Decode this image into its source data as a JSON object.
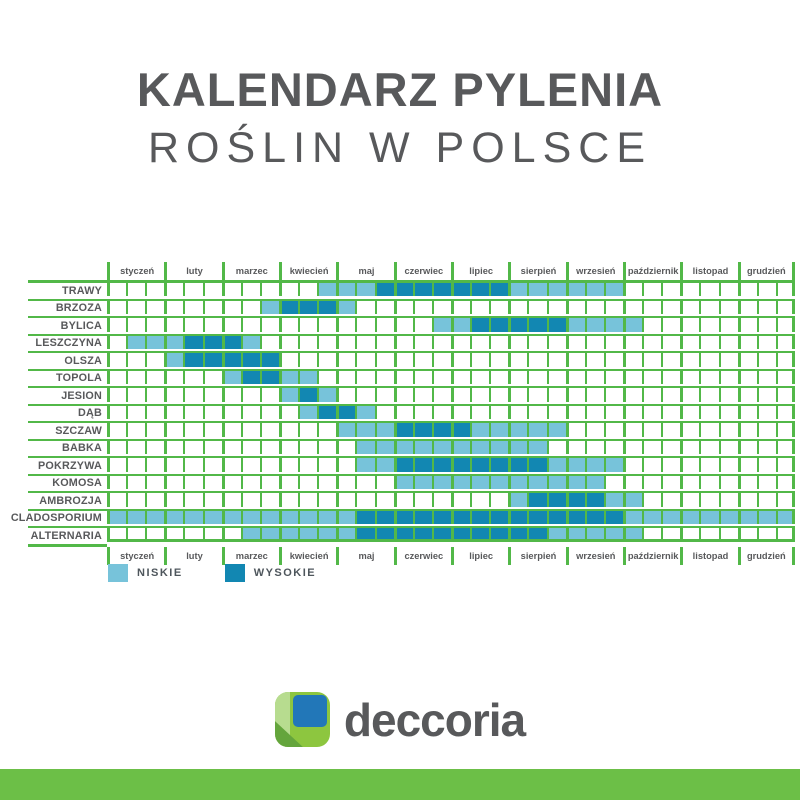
{
  "title": "KALENDARZ PYLENIA",
  "subtitle": "ROŚLIN W POLSCE",
  "legend": {
    "low_label": "NISKIE",
    "high_label": "WYSOKIE"
  },
  "logo": {
    "text": "deccoria"
  },
  "colors": {
    "low": "#77c3da",
    "high": "#1287b2",
    "grid": "#52b848",
    "ink": "#58595b",
    "bar": "#6cbf47",
    "logo_blue": "#2277b8",
    "logo_green": "#8dc63f",
    "logo_green_pale": "#b7dc8f",
    "logo_green_dark": "#64a53c"
  },
  "chart_data": {
    "type": "heatmap",
    "title": "KALENDARZ PYLENIA",
    "subtitle": "ROŚLIN W POLSCE",
    "description": "Pollen calendar; each month split into 3 cells; 0 = none, 1 = NISKIE (low), 2 = WYSOKIE (high)",
    "cells_per_month": 3,
    "legend_entries": [
      {
        "level": 1,
        "label": "NISKIE"
      },
      {
        "level": 2,
        "label": "WYSOKIE"
      }
    ],
    "months": [
      "styczeń",
      "luty",
      "marzec",
      "kwiecień",
      "maj",
      "czerwiec",
      "lipiec",
      "sierpień",
      "wrzesień",
      "październik",
      "listopad",
      "grudzień"
    ],
    "rows": [
      {
        "label": "TRAWY",
        "cells": "000000000001112222222111111000000000"
      },
      {
        "label": "BRZOZA",
        "cells": "000000001222100000000000000000000000"
      },
      {
        "label": "BYLICA",
        "cells": "000000000000000001122222111100000000"
      },
      {
        "label": "LESZCZYNA",
        "cells": "011122210000000000000000000000000000"
      },
      {
        "label": "OLSZA",
        "cells": "000122222000000000000000000000000000"
      },
      {
        "label": "TOPOLA",
        "cells": "000000122110000000000000000000000000"
      },
      {
        "label": "JESION",
        "cells": "000000000121000000000000000000000000"
      },
      {
        "label": "DĄB",
        "cells": "000000000012210000000000000000000000"
      },
      {
        "label": "SZCZAW",
        "cells": "000000000000111222211111000000000000"
      },
      {
        "label": "BABKA",
        "cells": "000000000000011111111110000000000000"
      },
      {
        "label": "POKRZYWA",
        "cells": "000000000000011222222221111000000000"
      },
      {
        "label": "KOMOSA",
        "cells": "000000000000000111111111110000000000"
      },
      {
        "label": "AMBROZJA",
        "cells": "000000000000000000000122221100000000"
      },
      {
        "label": "CLADOSPORIUM",
        "cells": "111111111111122222222222222111111111"
      },
      {
        "label": "ALTERNARIA",
        "cells": "000000011111122222222221111100000000"
      }
    ]
  }
}
